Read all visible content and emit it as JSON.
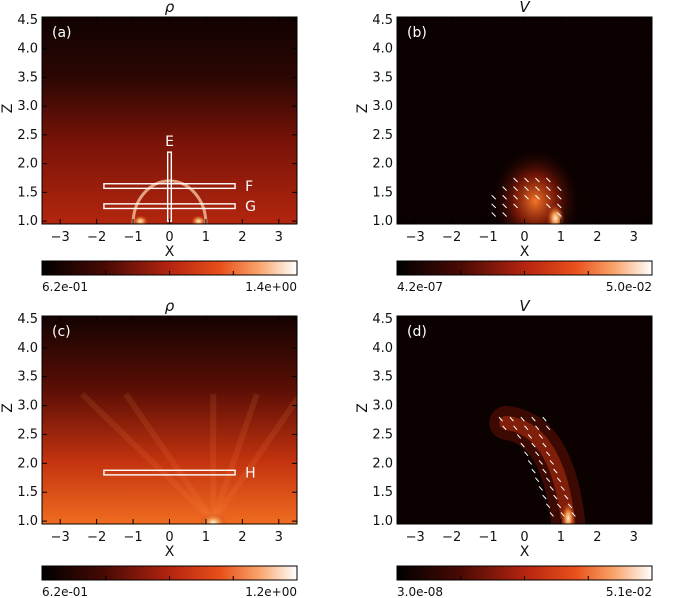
{
  "chart_data": [
    {
      "type": "heatmap",
      "panel_label": "(a)",
      "title": "ρ",
      "xlabel": "X",
      "ylabel": "Z",
      "xlim": [
        -3.5,
        3.5
      ],
      "ylim": [
        0.95,
        4.55
      ],
      "xticks": [
        -3,
        -2,
        -1,
        0,
        1,
        2,
        3
      ],
      "yticks": [
        1.0,
        1.5,
        2.0,
        2.5,
        3.0,
        3.5,
        4.0,
        4.5
      ],
      "xticklabels": [
        "−3",
        "−2",
        "−1",
        "0",
        "1",
        "2",
        "3"
      ],
      "yticklabels": [
        "1.0",
        "1.5",
        "2.0",
        "2.5",
        "3.0",
        "3.5",
        "4.0",
        "4.5"
      ],
      "field": "density",
      "colorbar": {
        "min_label": "6.2e-01",
        "max_label": "1.4e+00",
        "min": 0.62,
        "max": 1.4
      },
      "regions": [
        {
          "label": "E",
          "x": [
            -0.05,
            0.05
          ],
          "z": [
            1.0,
            2.2
          ]
        },
        {
          "label": "F",
          "x": [
            -1.8,
            1.8
          ],
          "z": [
            1.57,
            1.65
          ]
        },
        {
          "label": "G",
          "x": [
            -1.8,
            1.8
          ],
          "z": [
            1.22,
            1.3
          ]
        }
      ]
    },
    {
      "type": "heatmap",
      "panel_label": "(b)",
      "title": "V",
      "xlabel": "X",
      "ylabel": "Z",
      "xlim": [
        -3.5,
        3.5
      ],
      "ylim": [
        0.95,
        4.55
      ],
      "xticks": [
        -3,
        -2,
        -1,
        0,
        1,
        2,
        3
      ],
      "yticks": [
        1.0,
        1.5,
        2.0,
        2.5,
        3.0,
        3.5,
        4.0,
        4.5
      ],
      "xticklabels": [
        "−3",
        "−2",
        "−1",
        "0",
        "1",
        "2",
        "3"
      ],
      "yticklabels": [
        "1.0",
        "1.5",
        "2.0",
        "2.5",
        "3.0",
        "3.5",
        "4.0",
        "4.5"
      ],
      "field": "velocity",
      "colorbar": {
        "min_label": "4.2e-07",
        "max_label": "5.0e-02",
        "min": 4.2e-07,
        "max": 0.05
      },
      "regions": []
    },
    {
      "type": "heatmap",
      "panel_label": "(c)",
      "title": "ρ",
      "xlabel": "X",
      "ylabel": "Z",
      "xlim": [
        -3.5,
        3.5
      ],
      "ylim": [
        0.95,
        4.55
      ],
      "xticks": [
        -3,
        -2,
        -1,
        0,
        1,
        2,
        3
      ],
      "yticks": [
        1.0,
        1.5,
        2.0,
        2.5,
        3.0,
        3.5,
        4.0,
        4.5
      ],
      "xticklabels": [
        "−3",
        "−2",
        "−1",
        "0",
        "1",
        "2",
        "3"
      ],
      "yticklabels": [
        "1.0",
        "1.5",
        "2.0",
        "2.5",
        "3.0",
        "3.5",
        "4.0",
        "4.5"
      ],
      "field": "density",
      "colorbar": {
        "min_label": "6.2e-01",
        "max_label": "1.2e+00",
        "min": 0.62,
        "max": 1.2
      },
      "regions": [
        {
          "label": "H",
          "x": [
            -1.8,
            1.8
          ],
          "z": [
            1.8,
            1.88
          ]
        }
      ]
    },
    {
      "type": "heatmap",
      "panel_label": "(d)",
      "title": "V",
      "xlabel": "X",
      "ylabel": "Z",
      "xlim": [
        -3.5,
        3.5
      ],
      "ylim": [
        0.95,
        4.55
      ],
      "xticks": [
        -3,
        -2,
        -1,
        0,
        1,
        2,
        3
      ],
      "yticks": [
        1.0,
        1.5,
        2.0,
        2.5,
        3.0,
        3.5,
        4.0,
        4.5
      ],
      "xticklabels": [
        "−3",
        "−2",
        "−1",
        "0",
        "1",
        "2",
        "3"
      ],
      "yticklabels": [
        "1.0",
        "1.5",
        "2.0",
        "2.5",
        "3.0",
        "3.5",
        "4.0",
        "4.5"
      ],
      "field": "velocity",
      "colorbar": {
        "min_label": "3.0e-08",
        "max_label": "5.1e-02",
        "min": 3e-08,
        "max": 0.051
      },
      "regions": []
    }
  ]
}
